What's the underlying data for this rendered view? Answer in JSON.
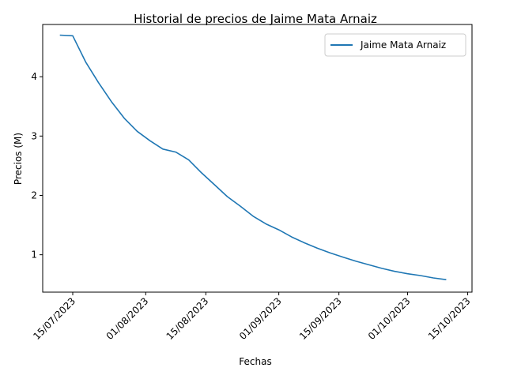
{
  "chart_data": {
    "type": "line",
    "title": "Historial de precios de Jaime Mata Arnaiz",
    "xlabel": "Fechas",
    "ylabel": "Precios (M)",
    "x_ticks": [
      "15/07/2023",
      "01/08/2023",
      "15/08/2023",
      "01/09/2023",
      "15/09/2023",
      "01/10/2023",
      "15/10/2023"
    ],
    "y_ticks": [
      1,
      2,
      3,
      4
    ],
    "xlim": [
      "2023-07-08",
      "2023-10-16"
    ],
    "ylim": [
      0.37,
      4.88
    ],
    "grid": false,
    "legend_position": "top-right",
    "series": [
      {
        "name": "Jaime Mata Arnaiz",
        "color": "#1f77b4",
        "x": [
          "2023-07-12",
          "2023-07-15",
          "2023-07-18",
          "2023-07-21",
          "2023-07-24",
          "2023-07-27",
          "2023-07-30",
          "2023-08-02",
          "2023-08-05",
          "2023-08-08",
          "2023-08-11",
          "2023-08-14",
          "2023-08-17",
          "2023-08-20",
          "2023-08-23",
          "2023-08-26",
          "2023-08-29",
          "2023-09-01",
          "2023-09-04",
          "2023-09-07",
          "2023-09-10",
          "2023-09-13",
          "2023-09-16",
          "2023-09-19",
          "2023-09-22",
          "2023-09-25",
          "2023-09-28",
          "2023-10-01",
          "2023-10-04",
          "2023-10-07",
          "2023-10-10"
        ],
        "values": [
          4.7,
          4.69,
          4.25,
          3.9,
          3.58,
          3.3,
          3.08,
          2.92,
          2.78,
          2.73,
          2.6,
          2.38,
          2.18,
          1.98,
          1.82,
          1.65,
          1.52,
          1.42,
          1.3,
          1.2,
          1.11,
          1.03,
          0.96,
          0.89,
          0.83,
          0.77,
          0.72,
          0.68,
          0.65,
          0.61,
          0.58
        ]
      }
    ]
  }
}
